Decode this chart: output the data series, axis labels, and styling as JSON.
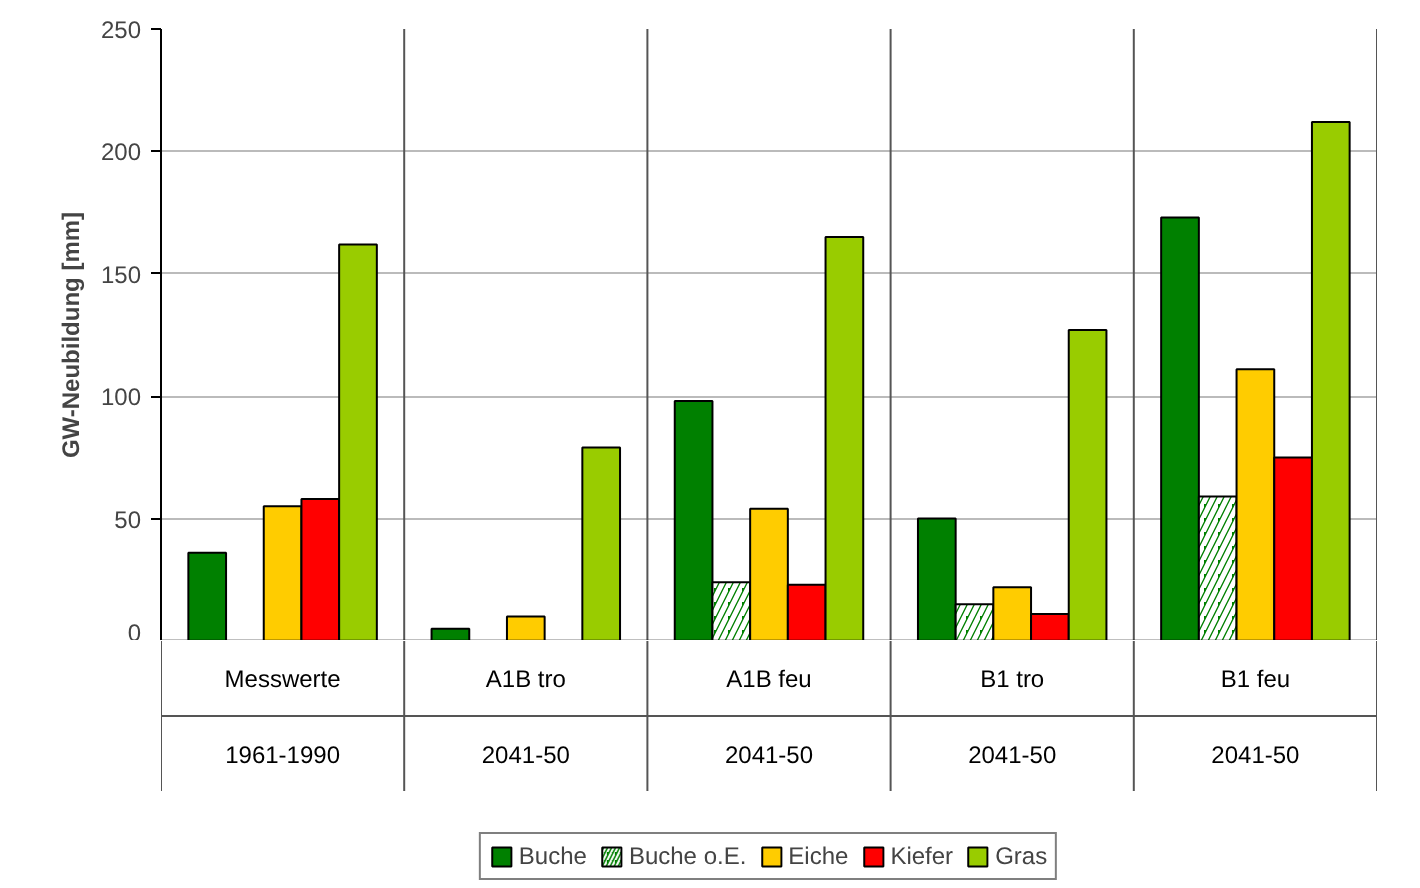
{
  "chart_data": {
    "type": "bar",
    "ylabel": "GW-Neubildung [mm]",
    "categories": [
      "Messwerte\n1961-1990",
      "A1B tro\n2041-50",
      "A1B feu\n2041-50",
      "B1 tro\n2041-50",
      "B1 feu\n2041-50"
    ],
    "series": [
      {
        "name": "Buche",
        "color": "#008000",
        "values": [
          36,
          5,
          98,
          50,
          173
        ]
      },
      {
        "name": "Buche o.E.",
        "color": "#008000",
        "values": [
          null,
          null,
          24,
          15,
          59
        ]
      },
      {
        "name": "Eiche",
        "color": "#ffcc00",
        "values": [
          55,
          10,
          54,
          22,
          111
        ]
      },
      {
        "name": "Kiefer",
        "color": "#ff0000",
        "values": [
          58,
          null,
          23,
          11,
          75
        ]
      },
      {
        "name": "Gras",
        "color": "#99cc00",
        "values": [
          162,
          79,
          165,
          127,
          212
        ]
      }
    ],
    "ylim": [
      0,
      250
    ],
    "yticks": [
      0,
      50,
      100,
      150,
      200,
      250
    ],
    "grid": "y",
    "legend": "bottom"
  }
}
